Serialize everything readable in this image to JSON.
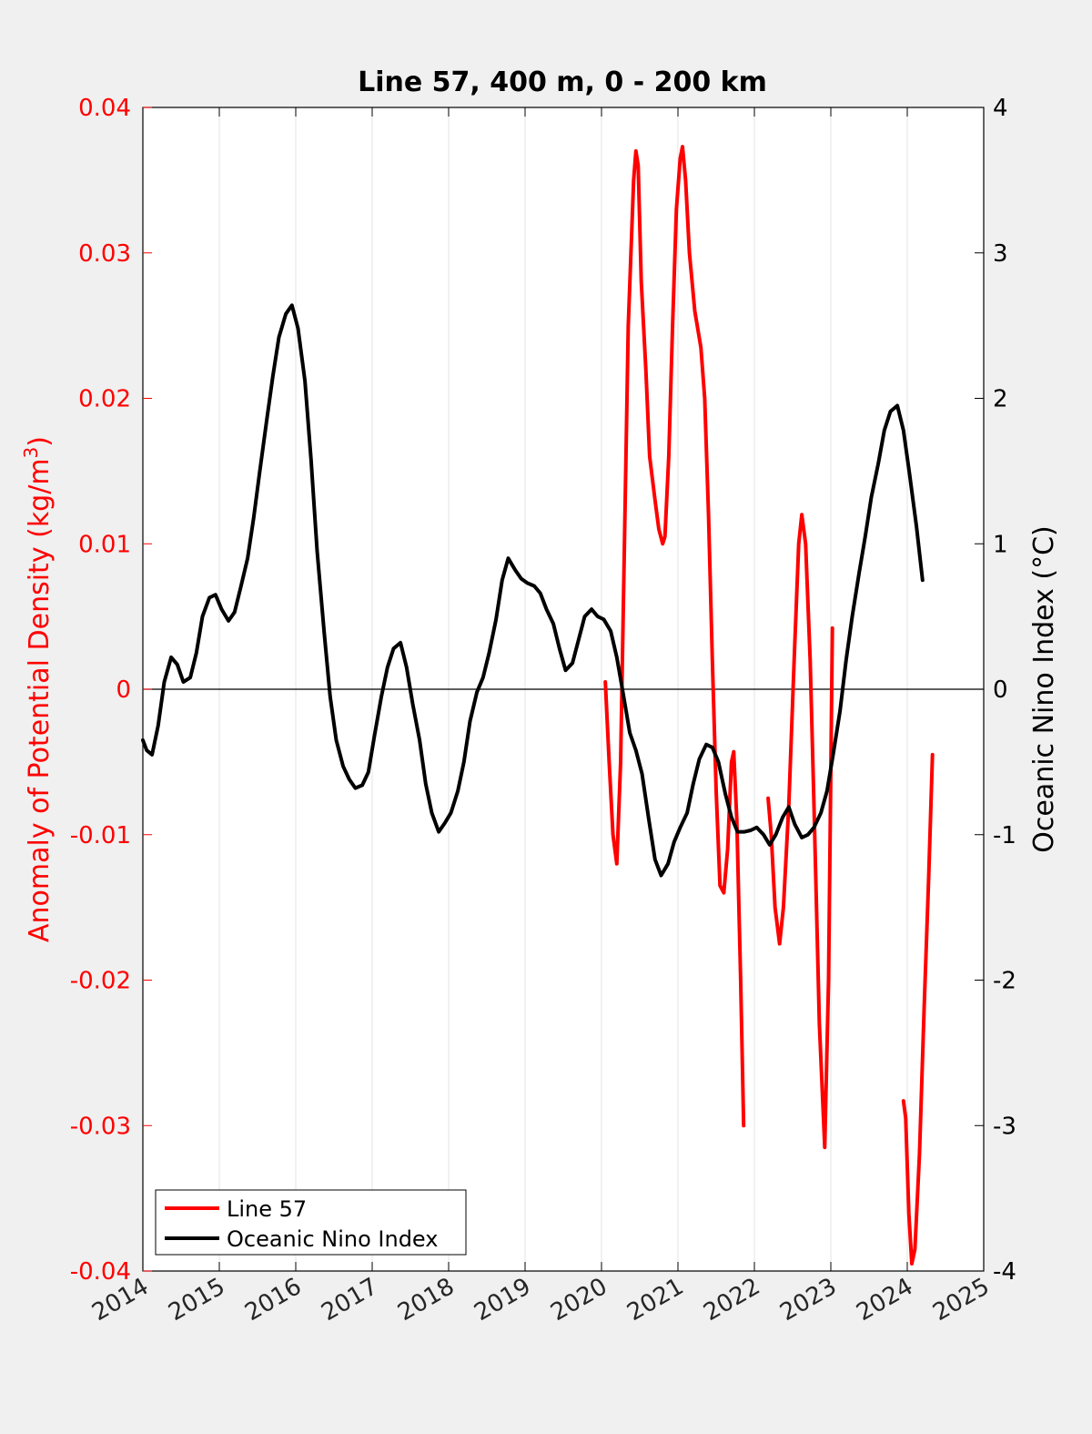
{
  "chart_data": {
    "type": "line",
    "title": "Line 57, 400 m, 0 - 200 km",
    "ylabel_left_pre": "Anomaly of Potential Density (kg/m",
    "ylabel_left_sup": "3",
    "ylabel_left_post": ")",
    "ylabel_right": "Oceanic Nino Index (°C)",
    "xlabel": "",
    "xlim": [
      2014,
      2025
    ],
    "ylim_left": [
      -0.04,
      0.04
    ],
    "ylim_right": [
      -4,
      4
    ],
    "x_ticks": [
      2014,
      2015,
      2016,
      2017,
      2018,
      2019,
      2020,
      2021,
      2022,
      2023,
      2024,
      2025
    ],
    "x_tick_labels": [
      "2014",
      "2015",
      "2016",
      "2017",
      "2018",
      "2019",
      "2020",
      "2021",
      "2022",
      "2023",
      "2024",
      "2025"
    ],
    "y_ticks_left": [
      -0.04,
      -0.03,
      -0.02,
      -0.01,
      0,
      0.01,
      0.02,
      0.03,
      0.04
    ],
    "y_tick_labels_left": [
      "-0.04",
      "-0.03",
      "-0.02",
      "-0.01",
      "0",
      "0.01",
      "0.02",
      "0.03",
      "0.04"
    ],
    "y_ticks_right": [
      -4,
      -3,
      -2,
      -1,
      0,
      1,
      2,
      3,
      4
    ],
    "y_tick_labels_right": [
      "-4",
      "-3",
      "-2",
      "-1",
      "0",
      "1",
      "2",
      "3",
      "4"
    ],
    "grid": "vertical",
    "legend_position": "bottom-left",
    "colors": {
      "line57": "#ff0000",
      "oni": "#000000",
      "left_axis": "#ff0000",
      "right_axis": "#000000"
    },
    "series": [
      {
        "name": "Line 57",
        "axis": "left",
        "segments": [
          [
            [
              2020.05,
              0.0005
            ],
            [
              2020.1,
              -0.005
            ],
            [
              2020.15,
              -0.01
            ],
            [
              2020.2,
              -0.012
            ],
            [
              2020.25,
              -0.005
            ],
            [
              2020.3,
              0.01
            ],
            [
              2020.35,
              0.025
            ],
            [
              2020.42,
              0.035
            ],
            [
              2020.45,
              0.037
            ],
            [
              2020.48,
              0.036
            ],
            [
              2020.52,
              0.028
            ],
            [
              2020.58,
              0.022
            ],
            [
              2020.63,
              0.016
            ],
            [
              2020.7,
              0.013
            ],
            [
              2020.75,
              0.011
            ],
            [
              2020.8,
              0.01
            ],
            [
              2020.83,
              0.0105
            ],
            [
              2020.88,
              0.016
            ],
            [
              2020.93,
              0.025
            ],
            [
              2020.98,
              0.033
            ],
            [
              2021.03,
              0.0365
            ],
            [
              2021.06,
              0.0373
            ],
            [
              2021.1,
              0.035
            ],
            [
              2021.15,
              0.03
            ],
            [
              2021.22,
              0.026
            ],
            [
              2021.3,
              0.0235
            ],
            [
              2021.35,
              0.02
            ],
            [
              2021.4,
              0.012
            ],
            [
              2021.45,
              0.002
            ],
            [
              2021.5,
              -0.007
            ],
            [
              2021.55,
              -0.0135
            ],
            [
              2021.6,
              -0.014
            ],
            [
              2021.65,
              -0.011
            ],
            [
              2021.7,
              -0.005
            ],
            [
              2021.73,
              -0.0043
            ],
            [
              2021.77,
              -0.009
            ],
            [
              2021.82,
              -0.02
            ],
            [
              2021.86,
              -0.03
            ]
          ],
          [
            [
              2022.18,
              -0.0075
            ],
            [
              2022.22,
              -0.01
            ],
            [
              2022.27,
              -0.015
            ],
            [
              2022.33,
              -0.0175
            ],
            [
              2022.38,
              -0.015
            ],
            [
              2022.45,
              -0.008
            ],
            [
              2022.52,
              0.002
            ],
            [
              2022.58,
              0.01
            ],
            [
              2022.62,
              0.012
            ],
            [
              2022.67,
              0.01
            ],
            [
              2022.73,
              0.002
            ],
            [
              2022.78,
              -0.008
            ],
            [
              2022.85,
              -0.023
            ],
            [
              2022.92,
              -0.0315
            ],
            [
              2022.97,
              -0.02
            ],
            [
              2023.02,
              0.0042
            ]
          ],
          [
            [
              2023.95,
              -0.0283
            ],
            [
              2023.98,
              -0.0295
            ],
            [
              2024.02,
              -0.036
            ],
            [
              2024.06,
              -0.0395
            ],
            [
              2024.1,
              -0.0385
            ],
            [
              2024.16,
              -0.032
            ],
            [
              2024.22,
              -0.022
            ],
            [
              2024.28,
              -0.013
            ],
            [
              2024.33,
              -0.0045
            ]
          ]
        ]
      },
      {
        "name": "Oceanic Nino Index",
        "axis": "right",
        "points": [
          [
            2014.0,
            -0.35
          ],
          [
            2014.05,
            -0.42
          ],
          [
            2014.12,
            -0.45
          ],
          [
            2014.2,
            -0.25
          ],
          [
            2014.28,
            0.05
          ],
          [
            2014.37,
            0.22
          ],
          [
            2014.45,
            0.17
          ],
          [
            2014.53,
            0.05
          ],
          [
            2014.62,
            0.08
          ],
          [
            2014.7,
            0.25
          ],
          [
            2014.78,
            0.5
          ],
          [
            2014.87,
            0.63
          ],
          [
            2014.95,
            0.65
          ],
          [
            2015.03,
            0.55
          ],
          [
            2015.12,
            0.47
          ],
          [
            2015.2,
            0.53
          ],
          [
            2015.28,
            0.7
          ],
          [
            2015.37,
            0.9
          ],
          [
            2015.45,
            1.18
          ],
          [
            2015.53,
            1.5
          ],
          [
            2015.62,
            1.85
          ],
          [
            2015.7,
            2.15
          ],
          [
            2015.78,
            2.42
          ],
          [
            2015.87,
            2.58
          ],
          [
            2015.95,
            2.64
          ],
          [
            2016.03,
            2.48
          ],
          [
            2016.12,
            2.12
          ],
          [
            2016.2,
            1.58
          ],
          [
            2016.28,
            0.95
          ],
          [
            2016.37,
            0.4
          ],
          [
            2016.45,
            -0.05
          ],
          [
            2016.53,
            -0.35
          ],
          [
            2016.62,
            -0.53
          ],
          [
            2016.7,
            -0.62
          ],
          [
            2016.78,
            -0.68
          ],
          [
            2016.87,
            -0.66
          ],
          [
            2016.95,
            -0.57
          ],
          [
            2017.03,
            -0.32
          ],
          [
            2017.12,
            -0.05
          ],
          [
            2017.2,
            0.15
          ],
          [
            2017.28,
            0.28
          ],
          [
            2017.37,
            0.32
          ],
          [
            2017.45,
            0.15
          ],
          [
            2017.53,
            -0.1
          ],
          [
            2017.62,
            -0.35
          ],
          [
            2017.7,
            -0.65
          ],
          [
            2017.78,
            -0.85
          ],
          [
            2017.87,
            -0.98
          ],
          [
            2017.95,
            -0.92
          ],
          [
            2018.03,
            -0.85
          ],
          [
            2018.12,
            -0.7
          ],
          [
            2018.2,
            -0.5
          ],
          [
            2018.28,
            -0.22
          ],
          [
            2018.37,
            -0.02
          ],
          [
            2018.45,
            0.08
          ],
          [
            2018.53,
            0.25
          ],
          [
            2018.62,
            0.48
          ],
          [
            2018.7,
            0.75
          ],
          [
            2018.78,
            0.9
          ],
          [
            2018.87,
            0.82
          ],
          [
            2018.95,
            0.76
          ],
          [
            2019.03,
            0.73
          ],
          [
            2019.12,
            0.71
          ],
          [
            2019.2,
            0.66
          ],
          [
            2019.28,
            0.55
          ],
          [
            2019.37,
            0.45
          ],
          [
            2019.45,
            0.28
          ],
          [
            2019.53,
            0.13
          ],
          [
            2019.62,
            0.18
          ],
          [
            2019.7,
            0.34
          ],
          [
            2019.78,
            0.5
          ],
          [
            2019.87,
            0.55
          ],
          [
            2019.95,
            0.5
          ],
          [
            2020.03,
            0.48
          ],
          [
            2020.12,
            0.4
          ],
          [
            2020.2,
            0.22
          ],
          [
            2020.28,
            -0.02
          ],
          [
            2020.37,
            -0.3
          ],
          [
            2020.45,
            -0.42
          ],
          [
            2020.53,
            -0.58
          ],
          [
            2020.62,
            -0.9
          ],
          [
            2020.7,
            -1.17
          ],
          [
            2020.78,
            -1.28
          ],
          [
            2020.87,
            -1.2
          ],
          [
            2020.95,
            -1.05
          ],
          [
            2021.03,
            -0.95
          ],
          [
            2021.12,
            -0.85
          ],
          [
            2021.2,
            -0.65
          ],
          [
            2021.28,
            -0.48
          ],
          [
            2021.37,
            -0.38
          ],
          [
            2021.45,
            -0.4
          ],
          [
            2021.53,
            -0.5
          ],
          [
            2021.62,
            -0.72
          ],
          [
            2021.7,
            -0.88
          ],
          [
            2021.78,
            -0.98
          ],
          [
            2021.87,
            -0.98
          ],
          [
            2021.95,
            -0.97
          ],
          [
            2022.03,
            -0.95
          ],
          [
            2022.12,
            -1.0
          ],
          [
            2022.2,
            -1.07
          ],
          [
            2022.28,
            -1.0
          ],
          [
            2022.37,
            -0.88
          ],
          [
            2022.45,
            -0.81
          ],
          [
            2022.53,
            -0.93
          ],
          [
            2022.62,
            -1.02
          ],
          [
            2022.7,
            -1.0
          ],
          [
            2022.78,
            -0.95
          ],
          [
            2022.87,
            -0.85
          ],
          [
            2022.95,
            -0.7
          ],
          [
            2023.03,
            -0.45
          ],
          [
            2023.12,
            -0.15
          ],
          [
            2023.2,
            0.2
          ],
          [
            2023.28,
            0.5
          ],
          [
            2023.37,
            0.8
          ],
          [
            2023.45,
            1.05
          ],
          [
            2023.53,
            1.32
          ],
          [
            2023.62,
            1.55
          ],
          [
            2023.7,
            1.78
          ],
          [
            2023.78,
            1.91
          ],
          [
            2023.87,
            1.95
          ],
          [
            2023.95,
            1.78
          ],
          [
            2024.03,
            1.48
          ],
          [
            2024.12,
            1.12
          ],
          [
            2024.2,
            0.75
          ]
        ]
      }
    ]
  }
}
